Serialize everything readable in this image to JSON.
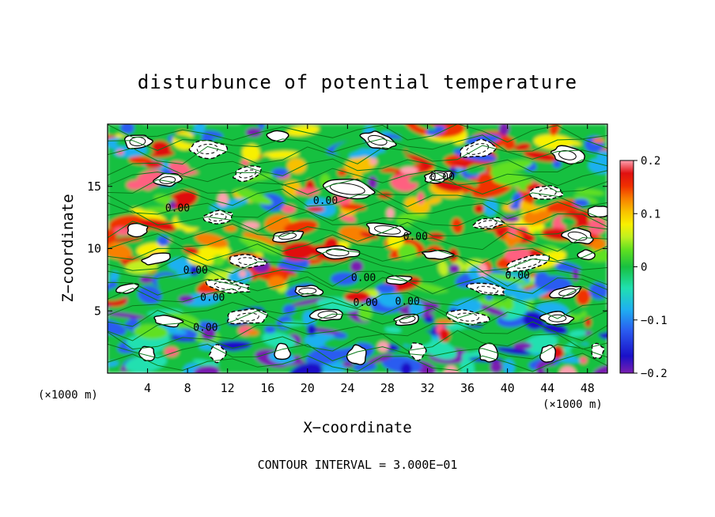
{
  "chart_data": {
    "type": "heatmap",
    "title": "disturbunce of potential temperature",
    "xlabel": "X−coordinate",
    "ylabel": "Z−coordinate",
    "x_unit_label": "(×1000 m)",
    "x_unit_label_right": "(×1000 m)",
    "footer": "CONTOUR INTERVAL = 3.000E−01",
    "xlim": [
      0,
      50
    ],
    "ylim": [
      0,
      20
    ],
    "x_ticks": [
      4,
      8,
      12,
      16,
      20,
      24,
      28,
      32,
      36,
      40,
      44,
      48
    ],
    "y_ticks": [
      5,
      10,
      15
    ],
    "colorbar": {
      "range": [
        -0.2,
        0.2
      ],
      "ticks": [
        0.2,
        0.1,
        0,
        -0.1,
        -0.2
      ],
      "tick_labels": [
        "0.2",
        "0.1",
        "0",
        "−0.1",
        "−0.2"
      ],
      "colors": [
        "#7a1fb0",
        "#1a10c8",
        "#2a5cf0",
        "#1fb0f0",
        "#20e0b0",
        "#18c040",
        "#60e020",
        "#c0f020",
        "#f8f000",
        "#f8c000",
        "#f88000",
        "#f03000",
        "#e01010",
        "#ff6080",
        "#ffa0b0"
      ]
    },
    "contour_label": "0.00",
    "contour_labels": [
      {
        "x": 7.0,
        "z": 13.0,
        "text": "0.00"
      },
      {
        "x": 8.8,
        "z": 8.0,
        "text": "0.00"
      },
      {
        "x": 10.5,
        "z": 5.8,
        "text": "0.00"
      },
      {
        "x": 9.8,
        "z": 3.4,
        "text": "0.00"
      },
      {
        "x": 21.8,
        "z": 13.6,
        "text": "0.00"
      },
      {
        "x": 25.6,
        "z": 7.4,
        "text": "0.00"
      },
      {
        "x": 25.8,
        "z": 5.4,
        "text": "0.00"
      },
      {
        "x": 30.8,
        "z": 10.7,
        "text": "0.00"
      },
      {
        "x": 30.0,
        "z": 5.5,
        "text": "0.00"
      },
      {
        "x": 33.5,
        "z": 15.5,
        "text": "0.00"
      },
      {
        "x": 41.0,
        "z": 7.6,
        "text": "0.00"
      }
    ]
  }
}
